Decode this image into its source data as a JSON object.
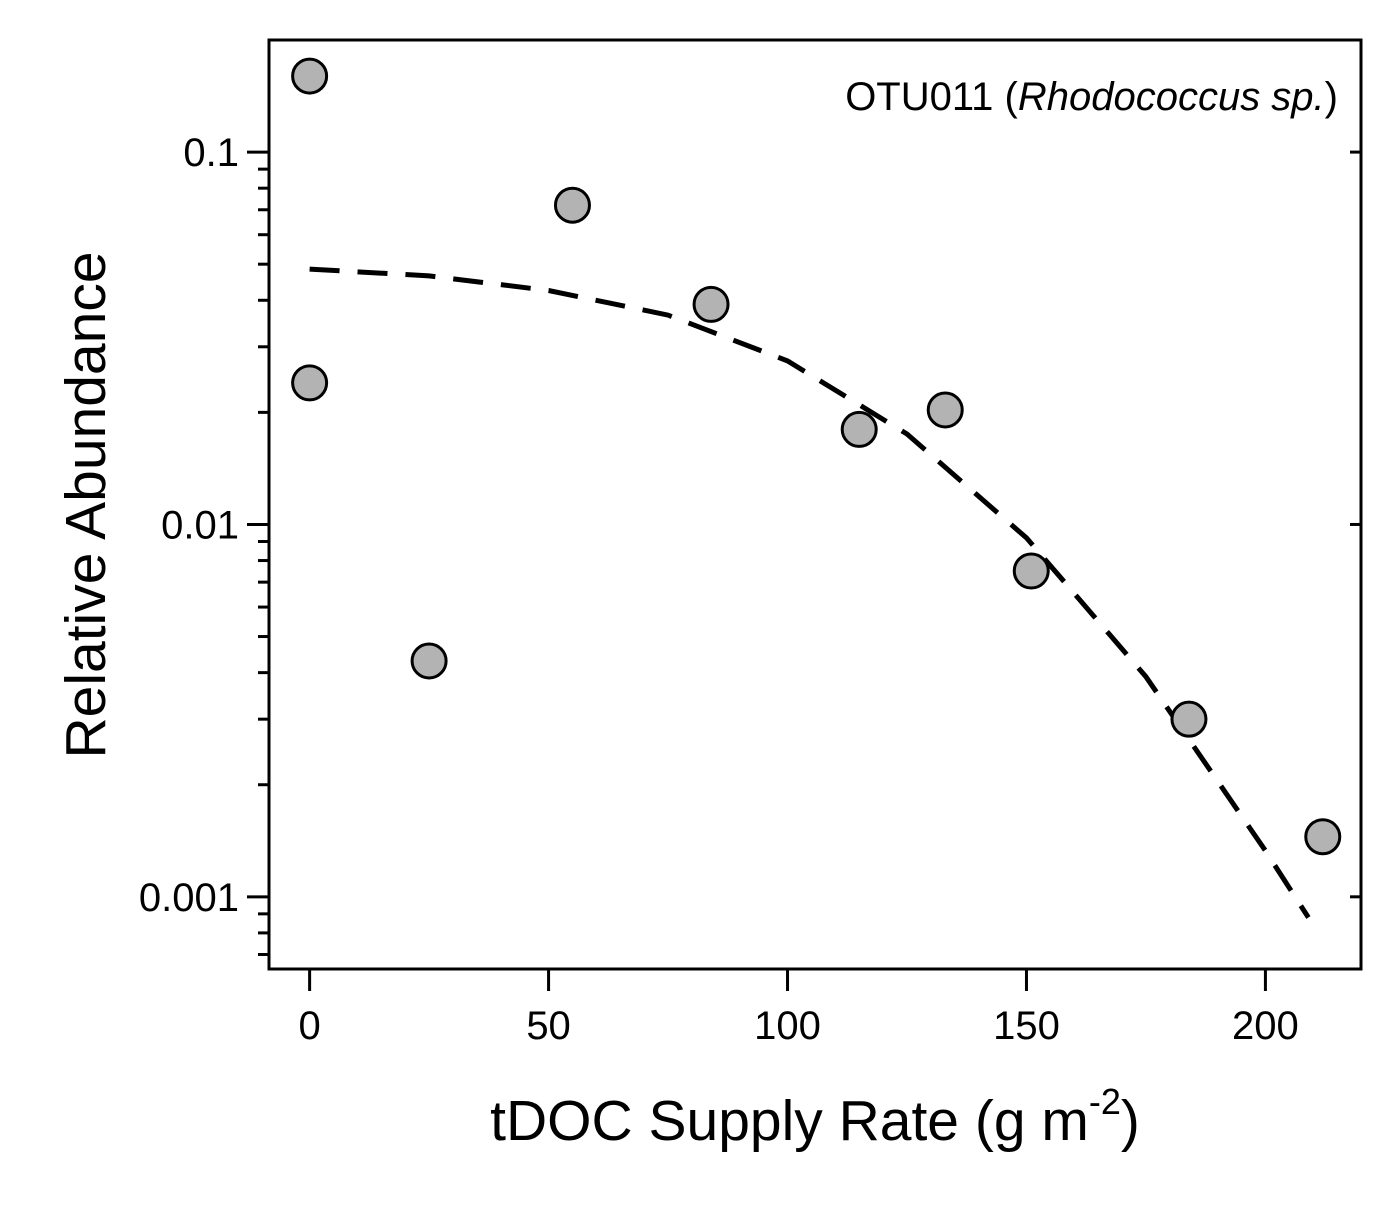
{
  "chart_data": {
    "type": "scatter",
    "annotation": {
      "prefix": "OTU011 (",
      "italic": "Rhodococcus sp.",
      "suffix": ")"
    },
    "xlabel": {
      "text": "tDOC Supply Rate (g m",
      "superscript": "-2",
      "suffix": ")"
    },
    "ylabel": "Relative Abundance",
    "x_scale": "linear",
    "y_scale": "log",
    "xlim": [
      -8.5,
      220
    ],
    "ylim": [
      0.00064,
      0.2
    ],
    "x_ticks": [
      0,
      50,
      100,
      150,
      200
    ],
    "x_tick_labels": [
      "0",
      "50",
      "100",
      "150",
      "200"
    ],
    "y_ticks": [
      0.001,
      0.01,
      0.1
    ],
    "y_tick_labels": [
      "0.001",
      "0.01",
      "0.1"
    ],
    "grid": false,
    "legend": "none",
    "series": [
      {
        "marker": "circle",
        "fill_color": "#b3b3b3",
        "edge_color": "#000000",
        "x": [
          0,
          0,
          25,
          55,
          84,
          115,
          133,
          151,
          184,
          212
        ],
        "y": [
          0.16,
          0.024,
          0.0043,
          0.072,
          0.039,
          0.018,
          0.0203,
          0.0075,
          0.003,
          0.00145
        ]
      }
    ],
    "fit_line": {
      "style": "dashed",
      "color": "#000000",
      "x": [
        0,
        25,
        50,
        75,
        100,
        125,
        150,
        175,
        200,
        209
      ],
      "y": [
        0.0485,
        0.0465,
        0.0425,
        0.0365,
        0.0275,
        0.0175,
        0.0092,
        0.0039,
        0.00133,
        0.00088
      ]
    }
  }
}
